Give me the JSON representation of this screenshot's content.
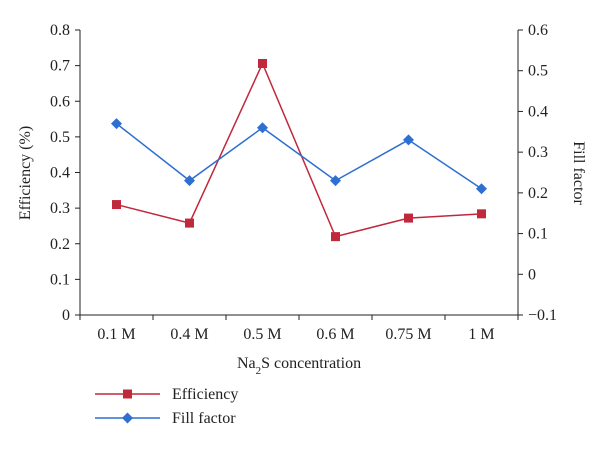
{
  "chart_data": {
    "type": "line",
    "categories": [
      "0.1 M",
      "0.4 M",
      "0.5 M",
      "0.6 M",
      "0.75 M",
      "1 M"
    ],
    "xlabel": {
      "prefix": "Na",
      "subscript": "2",
      "suffix": "S concentration"
    },
    "ylabel_left": "Efficiency (%)",
    "ylabel_right": "Fill factor",
    "ylim_left": [
      0,
      0.8
    ],
    "ylim_right": [
      -0.1,
      0.6
    ],
    "yticks_left": [
      "0",
      "0.1",
      "0.2",
      "0.3",
      "0.4",
      "0.5",
      "0.6",
      "0.7",
      "0.8"
    ],
    "yticks_right": [
      "−0.1",
      "0",
      "0.1",
      "0.2",
      "0.3",
      "0.4",
      "0.5",
      "0.6"
    ],
    "grid": false,
    "legend_position": "bottom-left",
    "series": [
      {
        "name": "Efficiency",
        "axis": "left",
        "color": "#c0283c",
        "marker": "square",
        "values": [
          0.31,
          0.258,
          0.706,
          0.22,
          0.272,
          0.284
        ]
      },
      {
        "name": "Fill factor",
        "axis": "right",
        "color": "#2f6fd1",
        "marker": "diamond",
        "values": [
          0.37,
          0.23,
          0.36,
          0.23,
          0.33,
          0.21
        ]
      }
    ]
  }
}
